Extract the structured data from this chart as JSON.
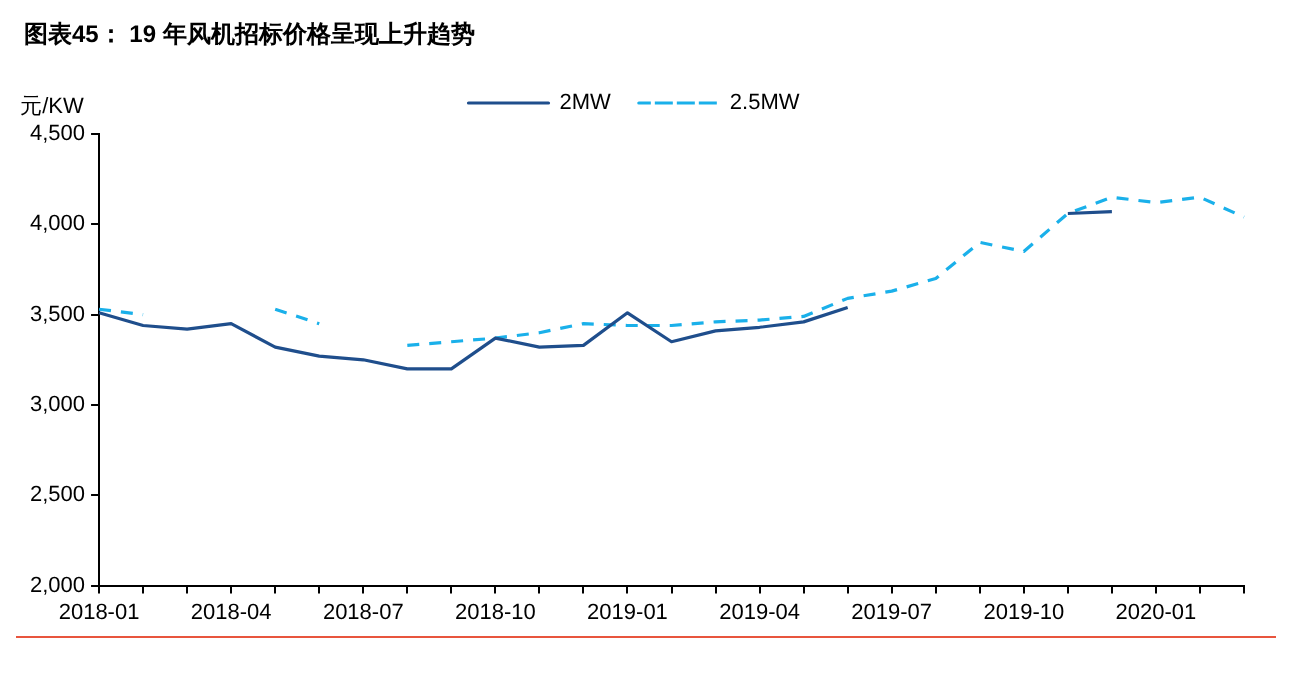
{
  "chart_data": {
    "type": "line",
    "title": "图表45：  19 年风机招标价格呈现上升趋势",
    "ylabel": "元/KW",
    "categories": [
      "2018-01",
      null,
      null,
      "2018-04",
      null,
      null,
      "2018-07",
      null,
      null,
      "2018-10",
      null,
      null,
      "2019-01",
      null,
      null,
      "2019-04",
      null,
      null,
      "2019-07",
      null,
      null,
      "2019-10",
      null,
      null,
      "2020-01",
      null,
      null
    ],
    "series": [
      {
        "name": "2MW",
        "color": "#1f4e8c",
        "line_style": "solid",
        "values": [
          3510,
          3440,
          3420,
          3450,
          3320,
          3270,
          3250,
          3200,
          3200,
          3370,
          3320,
          3330,
          3510,
          3350,
          3410,
          3430,
          3460,
          3540,
          null,
          null,
          null,
          null,
          4060,
          4070,
          null,
          null,
          null
        ]
      },
      {
        "name": "2.5MW",
        "color": "#1ab0ea",
        "line_style": "dashed",
        "values": [
          3530,
          3500,
          null,
          null,
          3530,
          3450,
          null,
          3330,
          3350,
          3370,
          3400,
          3450,
          3440,
          3440,
          3460,
          3470,
          3490,
          3590,
          3630,
          3700,
          3900,
          3850,
          4060,
          4150,
          4120,
          4150,
          4040
        ]
      }
    ],
    "ylim": [
      2000,
      4500
    ],
    "yticks": [
      {
        "value": 2000,
        "label": "2,000"
      },
      {
        "value": 2500,
        "label": "2,500"
      },
      {
        "value": 3000,
        "label": "3,000"
      },
      {
        "value": 3500,
        "label": "3,500"
      },
      {
        "value": 4000,
        "label": "4,000"
      },
      {
        "value": 4500,
        "label": "4,500"
      }
    ],
    "legend": "top",
    "marker": "none"
  }
}
